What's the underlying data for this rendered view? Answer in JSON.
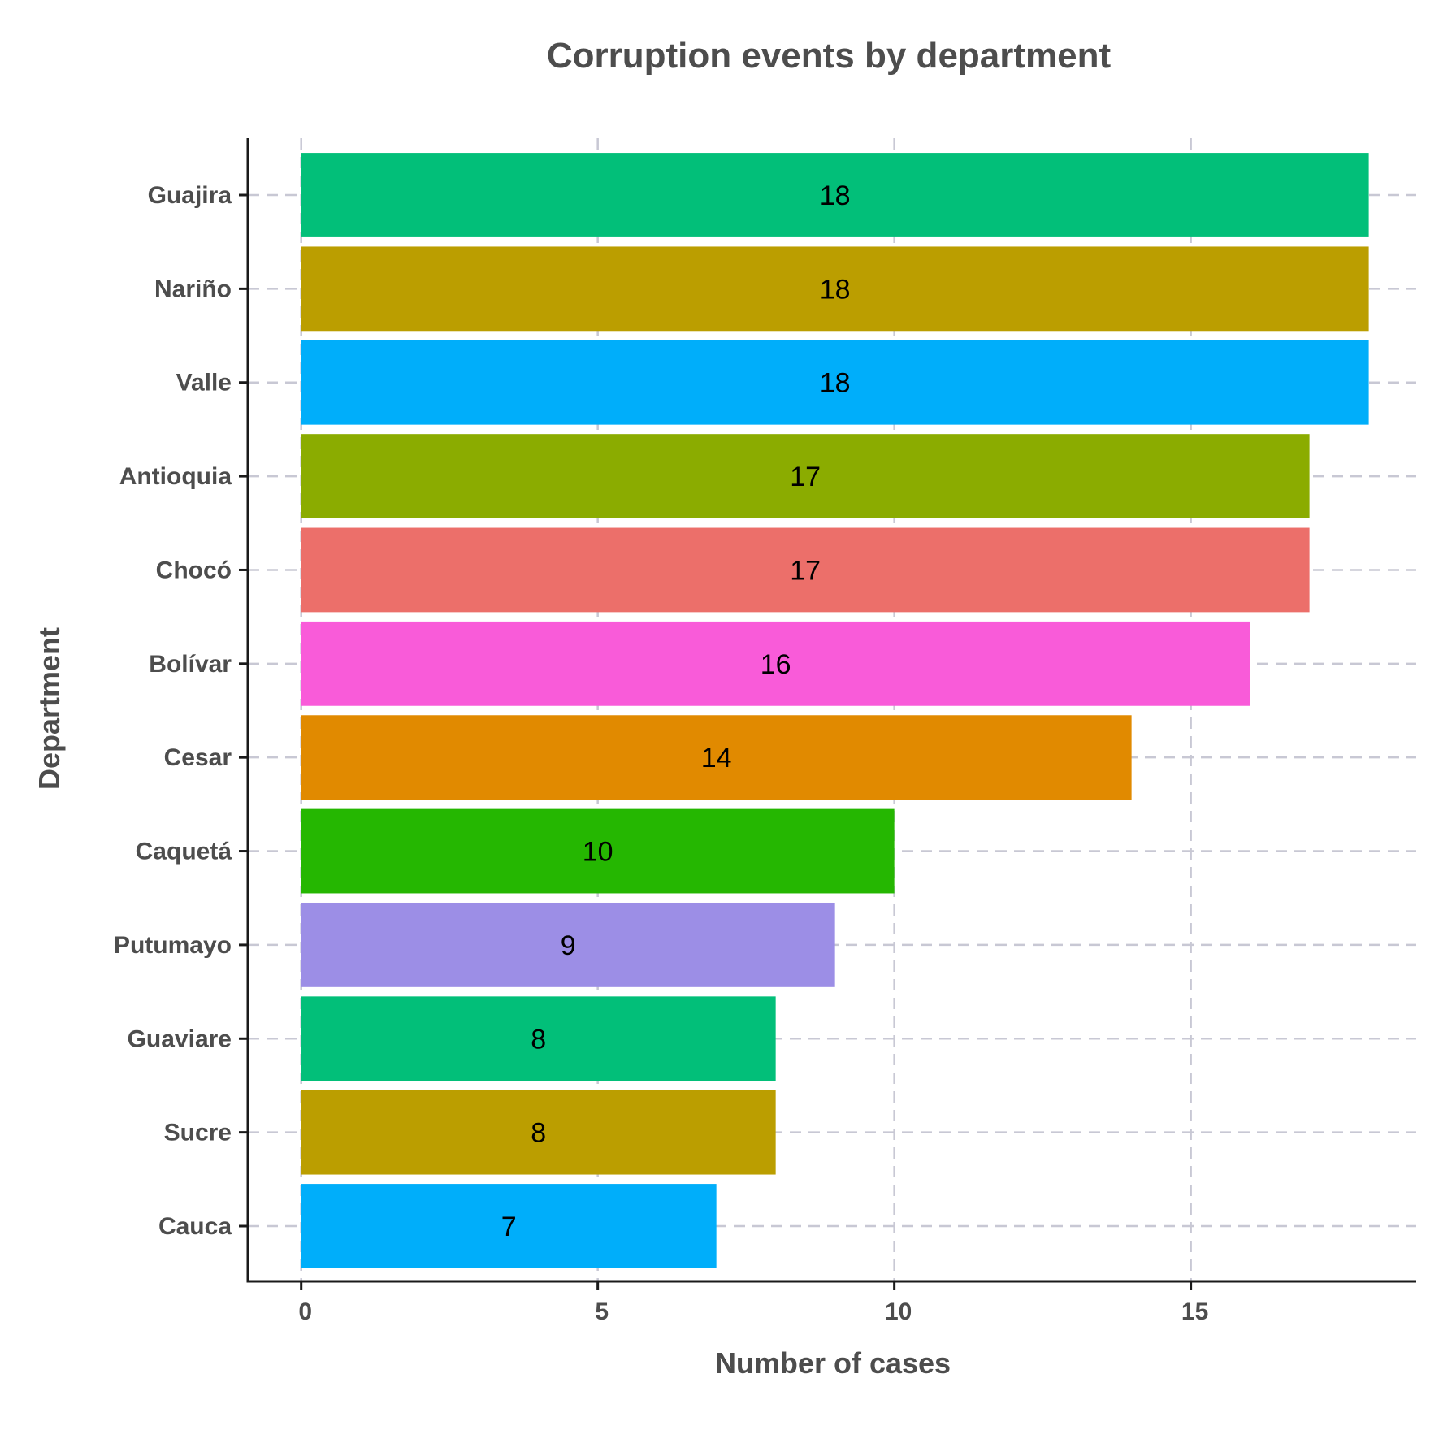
{
  "chart_data": {
    "type": "bar",
    "orientation": "horizontal",
    "title": "Corruption events by department",
    "xlabel": "Number of cases",
    "ylabel": "Department",
    "categories": [
      "Guajira",
      "Nariño",
      "Valle",
      "Antioquia",
      "Chocó",
      "Bolívar",
      "Cesar",
      "Caquetá",
      "Putumayo",
      "Guaviare",
      "Sucre",
      "Cauca"
    ],
    "values": [
      18,
      18,
      18,
      17,
      17,
      16,
      14,
      10,
      9,
      8,
      8,
      7
    ],
    "colors": [
      "#02BF79",
      "#BB9E00",
      "#00AEFA",
      "#8BAC00",
      "#EC6F6A",
      "#F95BD9",
      "#E18A00",
      "#25B701",
      "#9C8EE6",
      "#02BF79",
      "#BB9E00",
      "#00AEFA"
    ],
    "xticks": [
      "0",
      "5",
      "10",
      "15"
    ],
    "xlim": [
      -0.9,
      18.8
    ],
    "grid": true,
    "legend": "none"
  }
}
